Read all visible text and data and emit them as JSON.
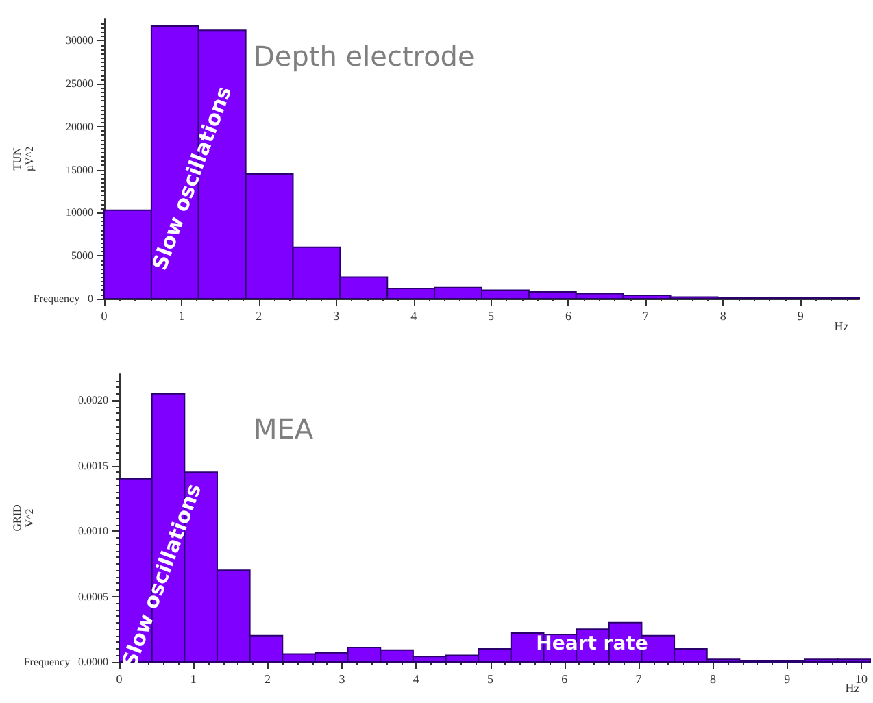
{
  "chart_data": [
    {
      "type": "histogram",
      "title": "Depth electrode",
      "xlabel": "Frequency",
      "ylabel": "TUN\nµV^2",
      "annotations": [
        "Slow oscillations",
        "Hz"
      ],
      "bins": [
        0,
        0.61,
        1.22,
        1.83,
        2.44,
        3.05,
        3.66,
        4.27,
        4.88,
        5.49,
        6.1,
        6.71,
        7.32,
        7.93,
        8.54,
        9.15,
        9.76
      ],
      "values": [
        10300,
        31700,
        31200,
        14500,
        6000,
        2500,
        1200,
        1300,
        1000,
        800,
        600,
        400,
        200,
        100,
        100,
        100
      ],
      "color": "#7f00ff",
      "xlim": [
        0,
        9.76
      ],
      "xticks": [
        0,
        1,
        2,
        3,
        4,
        5,
        6,
        7,
        8,
        9
      ],
      "ylim": [
        0,
        32500
      ],
      "yticks": [
        0,
        5000,
        10000,
        15000,
        20000,
        25000,
        30000
      ],
      "grid": false
    },
    {
      "type": "histogram",
      "title": "MEA",
      "xlabel": "Frequency",
      "ylabel": "GRID\nV^2",
      "annotations": [
        "Slow oscillations",
        "Heart rate",
        "Hz"
      ],
      "bins": [
        0,
        0.44,
        0.88,
        1.32,
        1.76,
        2.2,
        2.64,
        3.08,
        3.52,
        3.96,
        4.4,
        4.84,
        5.28,
        5.72,
        6.16,
        6.6,
        7.04,
        7.48,
        7.92,
        8.36,
        8.8,
        9.24,
        9.68,
        10.12
      ],
      "values": [
        0.0014,
        0.00205,
        0.00145,
        0.0007,
        0.0002,
        6e-05,
        7e-05,
        0.00011,
        9e-05,
        4e-05,
        5e-05,
        0.0001,
        0.00022,
        0.00021,
        0.00025,
        0.0003,
        0.0002,
        0.0001,
        2e-05,
        1e-05,
        1e-05,
        2e-05,
        2e-05
      ],
      "color": "#7f00ff",
      "xlim": [
        0,
        10.12
      ],
      "xticks": [
        0,
        1,
        2,
        3,
        4,
        5,
        6,
        7,
        8,
        9,
        10
      ],
      "ylim": [
        0,
        0.0022
      ],
      "yticks": [
        {
          "value": 0,
          "label": "0.0000"
        },
        {
          "value": 0.0005,
          "label": "0.0005"
        },
        {
          "value": 0.001,
          "label": "0.0010"
        },
        {
          "value": 0.0015,
          "label": "0.0015"
        },
        {
          "value": 0.002,
          "label": "0.0020"
        }
      ],
      "grid": false
    }
  ]
}
